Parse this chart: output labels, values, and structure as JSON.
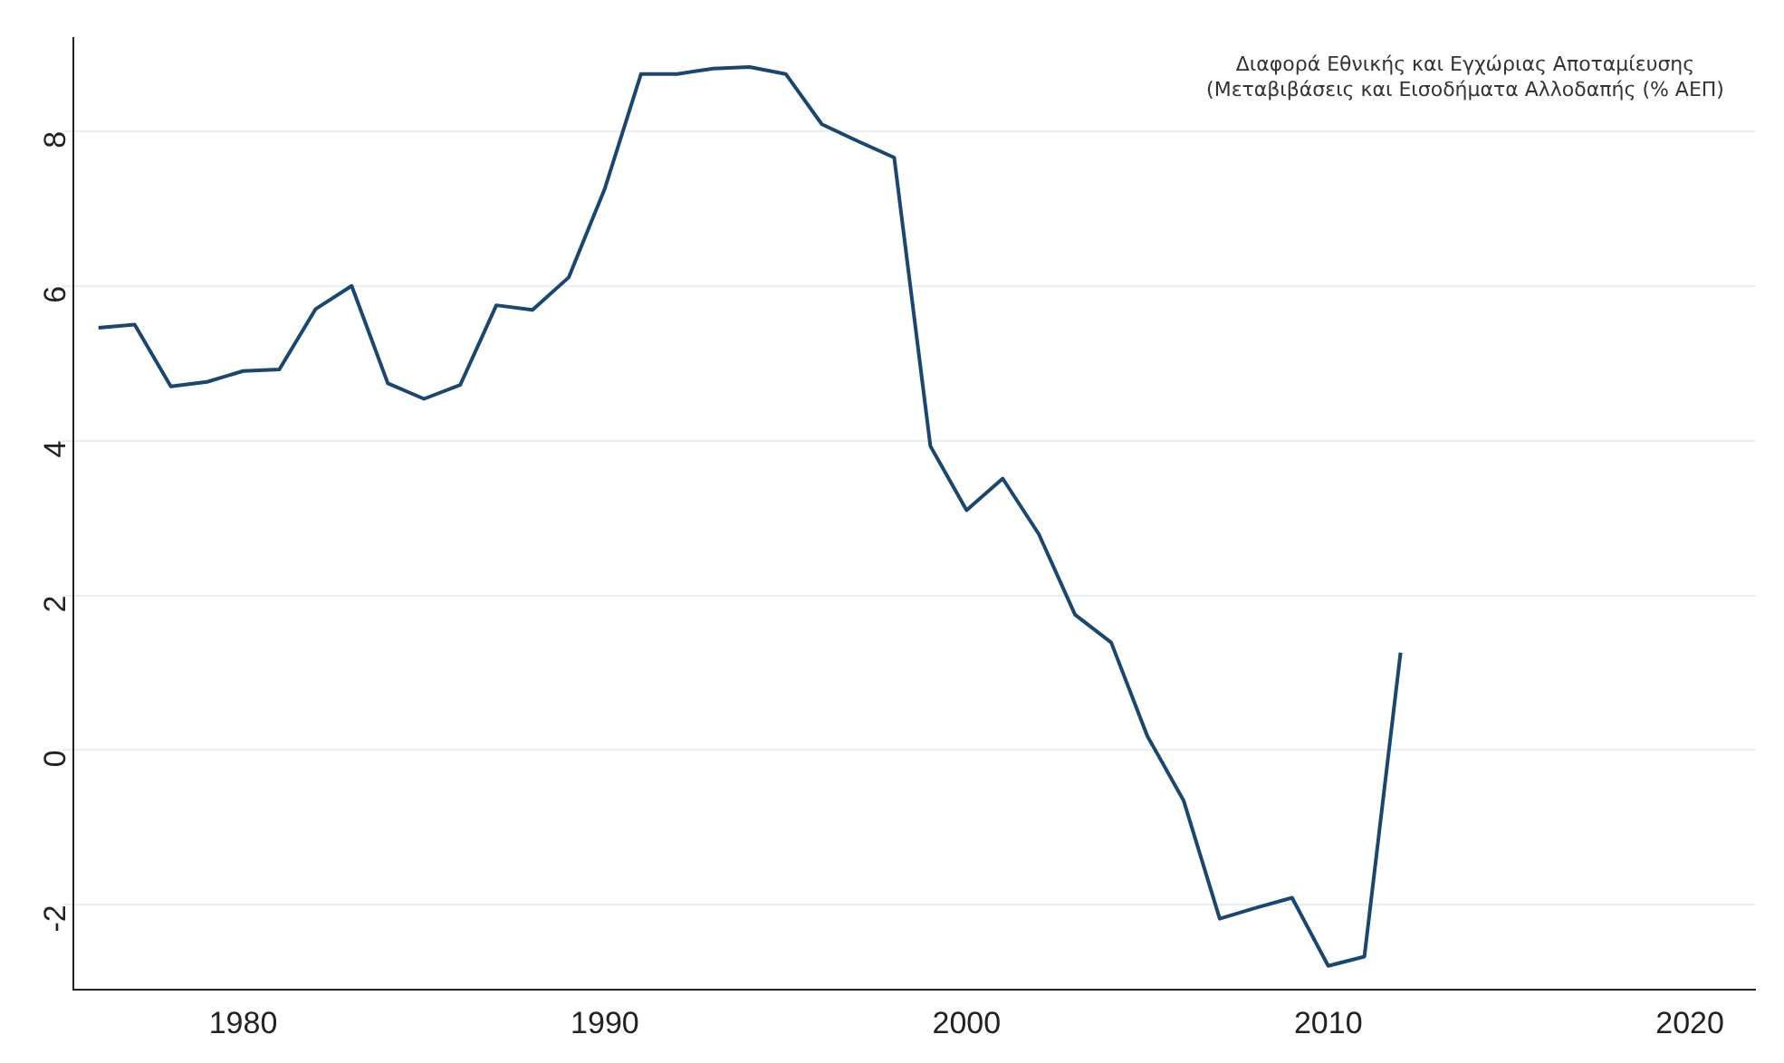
{
  "chart_data": {
    "type": "line",
    "title": "Διαφορά Εθνικής και Εγχώριας Αποταμίευσης",
    "subtitle": "(Μεταβιβάσεις και Εισοδήματα Αλλοδαπής (% ΑΕΠ)",
    "x": [
      1976,
      1977,
      1978,
      1979,
      1980,
      1981,
      1982,
      1983,
      1984,
      1985,
      1986,
      1987,
      1988,
      1989,
      1990,
      1991,
      1992,
      1993,
      1994,
      1995,
      1996,
      1997,
      1998,
      1999,
      2000,
      2001,
      2002,
      2003,
      2004,
      2005,
      2006,
      2007,
      2008,
      2009,
      2010,
      2011,
      2012
    ],
    "series": [
      {
        "color": "#1a476f",
        "values": [
          5.46,
          5.5,
          4.7,
          4.76,
          4.9,
          4.92,
          5.7,
          6.0,
          4.74,
          4.54,
          4.72,
          5.75,
          5.69,
          6.11,
          7.26,
          8.74,
          8.74,
          8.81,
          8.83,
          8.74,
          8.09,
          7.87,
          7.66,
          3.93,
          3.1,
          3.51,
          2.79,
          1.75,
          1.39,
          0.18,
          -0.65,
          -2.18,
          -2.04,
          -1.91,
          -2.79,
          -2.67,
          1.26
        ]
      }
    ],
    "xlim": [
      1975.3,
      2021.8
    ],
    "xticks": [
      1980,
      1990,
      2000,
      2010,
      2020
    ],
    "ylim": [
      -3.1,
      9.2
    ],
    "yticks": [
      -2,
      0,
      2,
      4,
      6,
      8
    ],
    "grid": "y",
    "legend": false,
    "marker": "none",
    "line_style": "solid"
  }
}
